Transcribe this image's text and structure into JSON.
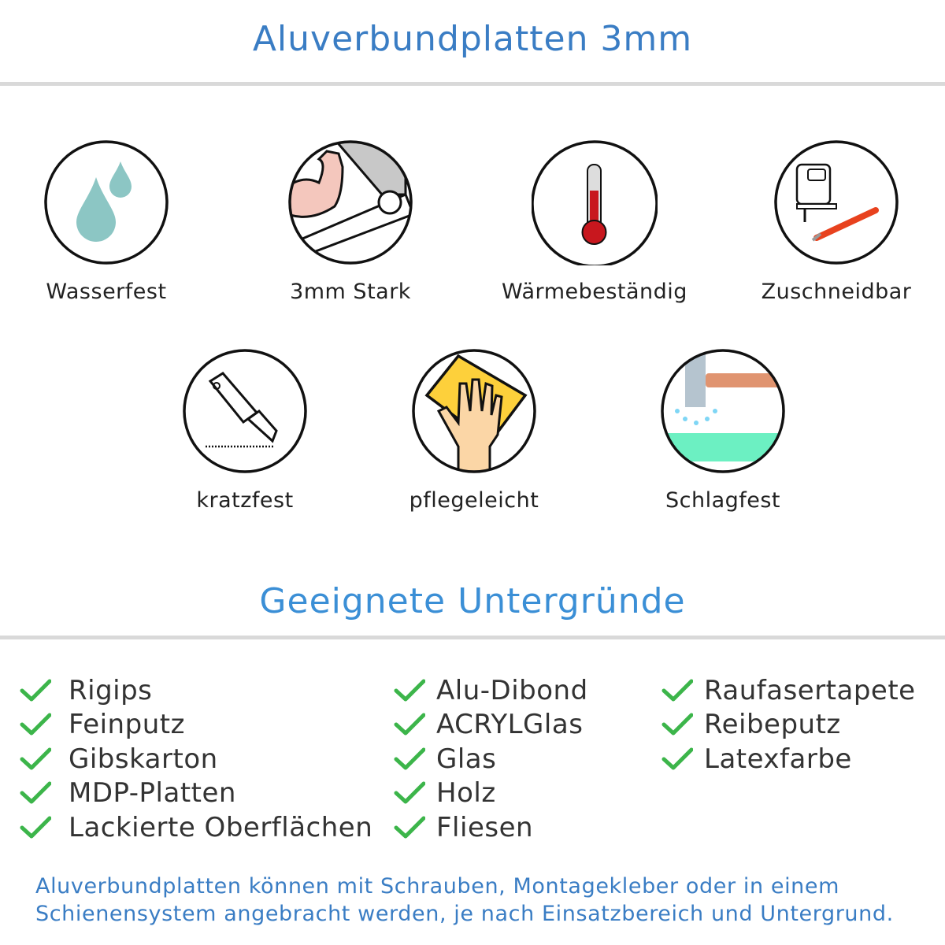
{
  "header": {
    "title": "Aluverbundplatten 3mm"
  },
  "features": [
    {
      "label": "Wasserfest",
      "icon": "water-drops-icon"
    },
    {
      "label": "3mm Stark",
      "icon": "strong-arm-icon"
    },
    {
      "label": "Wärmebeständig",
      "icon": "thermometer-icon"
    },
    {
      "label": "Zuschneidbar",
      "icon": "jigsaw-knife-icon"
    },
    {
      "label": "kratzfest",
      "icon": "cutter-knife-icon"
    },
    {
      "label": "pflegeleicht",
      "icon": "hand-cloth-icon"
    },
    {
      "label": "Schlagfest",
      "icon": "hammer-icon"
    }
  ],
  "surfaces": {
    "title": "Geeignete Untergründe",
    "columns": [
      [
        "Rigips",
        "Feinputz",
        "Gibskarton",
        "MDP-Platten",
        "Lackierte Oberflächen"
      ],
      [
        "Alu-Dibond",
        "ACRYLGlas",
        "Glas",
        "Holz",
        "Fliesen"
      ],
      [
        "Raufasertapete",
        "Reibeputz",
        "Latexfarbe"
      ]
    ],
    "check_color": "#3cb54a"
  },
  "footer": {
    "line1": "Aluverbundplatten können mit Schrauben, Montagekleber oder in einem",
    "line2": "Schienensystem angebracht werden, je nach Einsatzbereich und Untergrund."
  },
  "colors": {
    "title": "#3a7dc4",
    "subtitle": "#3b8fd6",
    "rule": "#d9d9d9"
  }
}
